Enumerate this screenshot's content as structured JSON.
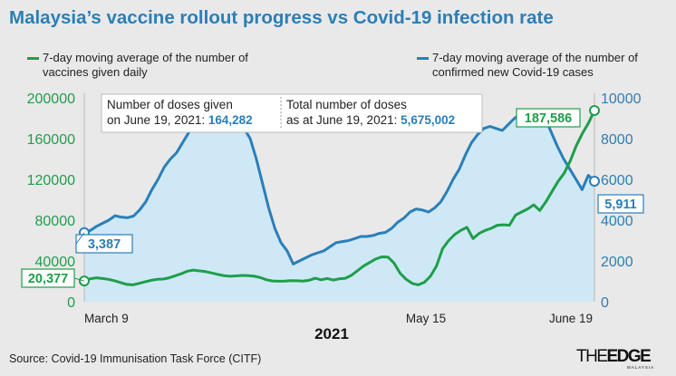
{
  "title": "Malaysia’s vaccine rollout progress vs Covid-19 infection rate",
  "legend": {
    "vaccines": "7-day moving average of the number of vaccines given daily",
    "cases": "7-day moving average of the number of confirmed new Covid-19 cases"
  },
  "source": "Source: Covid-19 Immunisation Task Force (CITF)",
  "logo": {
    "the": "THE",
    "edge": "EDGE",
    "sub": "MALAYSIA"
  },
  "colors": {
    "vaccines": "#1e9e4a",
    "cases": "#2a7fb8",
    "area": "#cfe8f6",
    "title": "#2a7fb8"
  },
  "chart_data": {
    "type": "line",
    "title": "Malaysia’s vaccine rollout progress vs Covid-19 infection rate",
    "xlabel": "2021",
    "x_ticks": [
      "March 9",
      "May 15",
      "June 19"
    ],
    "x_range": [
      "March 9",
      "June 19"
    ],
    "y_left": {
      "ticks": [
        "0",
        "40000",
        "80000",
        "120000",
        "160000",
        "200000"
      ],
      "range": [
        0,
        200000
      ]
    },
    "y_right": {
      "ticks": [
        "0",
        "2000",
        "4000",
        "6000",
        "8000",
        "10000"
      ],
      "range": [
        0,
        10000
      ]
    },
    "series": [
      {
        "name": "7-day moving average of the number of vaccines given daily",
        "axis": "left",
        "values": [
          20377,
          22500,
          23500,
          22800,
          22000,
          20500,
          18800,
          17000,
          16500,
          18000,
          19500,
          21000,
          22000,
          22200,
          23500,
          25500,
          27500,
          30000,
          31000,
          30200,
          29500,
          28200,
          26800,
          25500,
          25000,
          25300,
          25800,
          25600,
          25000,
          23600,
          21500,
          20400,
          20100,
          20200,
          20600,
          20500,
          20300,
          21000,
          23000,
          21500,
          22800,
          21200,
          22500,
          23000,
          26000,
          30500,
          35000,
          38500,
          42000,
          44000,
          43800,
          38000,
          28000,
          22000,
          18000,
          16500,
          19000,
          25000,
          35000,
          52000,
          60000,
          66000,
          70000,
          73000,
          62000,
          67000,
          70000,
          72000,
          75000,
          75500,
          75000,
          85000,
          88000,
          91000,
          95000,
          89500,
          98000,
          108000,
          118000,
          126000,
          138000,
          153000,
          165000,
          175000,
          187586
        ],
        "start_label": "20,377",
        "end_label": "187,586"
      },
      {
        "name": "7-day moving average of the number of confirmed new Covid-19 cases",
        "axis": "right",
        "values": [
          3387,
          3500,
          3700,
          3850,
          4000,
          4220,
          4150,
          4120,
          4200,
          4500,
          4900,
          5500,
          6000,
          6600,
          7000,
          7300,
          7800,
          8300,
          8700,
          8850,
          8950,
          8950,
          8900,
          8960,
          8900,
          8700,
          8500,
          8000,
          7000,
          5800,
          4600,
          3600,
          2900,
          2500,
          1850,
          2000,
          2150,
          2300,
          2400,
          2500,
          2700,
          2900,
          2950,
          3000,
          3100,
          3200,
          3200,
          3250,
          3350,
          3400,
          3600,
          3900,
          4100,
          4400,
          4550,
          4500,
          4400,
          4600,
          4900,
          5400,
          6000,
          6500,
          7200,
          7800,
          8200,
          8500,
          8600,
          8500,
          8400,
          8700,
          9000,
          9200,
          9300,
          9300,
          9200,
          9000,
          8300,
          7600,
          7000,
          6500,
          6000,
          5500,
          6200,
          5911
        ],
        "start_label": "3,387",
        "end_label": "5,911"
      }
    ],
    "annotations": {
      "doses_given_label": "Number of doses given on June 19, 2021:",
      "doses_given_value": "164,282",
      "total_doses_label": "Total number of doses as at June 19, 2021:",
      "total_doses_value": "5,675,002"
    },
    "grid": false,
    "legend_position": "top"
  }
}
